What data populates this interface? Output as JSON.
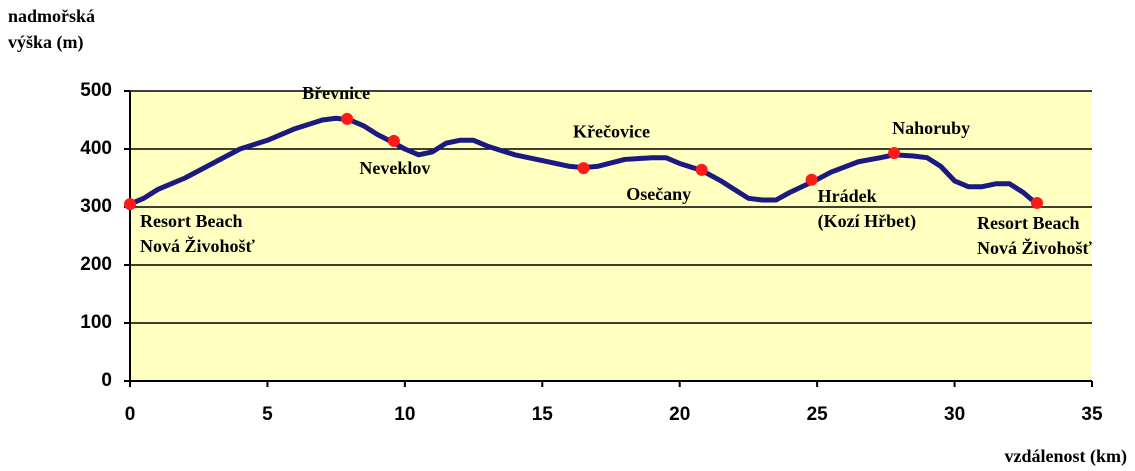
{
  "chart_data": {
    "type": "line",
    "y_label": [
      "nadmořská",
      "výška (m)"
    ],
    "x_label": "vzdálenost (km)",
    "x": [
      0,
      0.5,
      1,
      2,
      3,
      4,
      5,
      6,
      7,
      7.5,
      8,
      8.5,
      9,
      9.5,
      10,
      10.5,
      11,
      11.5,
      12,
      12.5,
      13,
      14,
      15,
      16,
      16.5,
      17,
      18,
      19,
      19.5,
      20,
      20.8,
      21.5,
      22,
      22.5,
      23,
      23.5,
      24,
      24.9,
      25.5,
      26.5,
      27.3,
      27.8,
      28.5,
      29,
      29.5,
      30,
      30.5,
      31,
      31.5,
      32,
      32.5,
      33
    ],
    "values": [
      305,
      315,
      330,
      350,
      375,
      400,
      415,
      435,
      450,
      453,
      450,
      440,
      425,
      413,
      400,
      390,
      395,
      410,
      415,
      415,
      405,
      390,
      380,
      370,
      368,
      370,
      382,
      385,
      385,
      375,
      363,
      345,
      330,
      315,
      312,
      312,
      325,
      345,
      360,
      378,
      385,
      390,
      388,
      385,
      370,
      345,
      335,
      335,
      340,
      340,
      325,
      305
    ],
    "color": "#1a1a80",
    "marker_color": "#ff1a1a",
    "background": "#ffffc0",
    "points": [
      {
        "label": [
          "Resort Beach",
          "Nová Živohošť"
        ],
        "x": 0,
        "y": 305
      },
      {
        "label": [
          "Břevnice"
        ],
        "x": 7.9,
        "y": 452
      },
      {
        "label": [
          "Neveklov"
        ],
        "x": 9.6,
        "y": 414
      },
      {
        "label": [
          "Křečovice"
        ],
        "x": 16.5,
        "y": 367
      },
      {
        "label": [
          "Osečany"
        ],
        "x": 20.8,
        "y": 364
      },
      {
        "label": [
          "Hrádek",
          "(Kozí Hřbet)"
        ],
        "x": 24.8,
        "y": 347
      },
      {
        "label": [
          "Nahoruby"
        ],
        "x": 27.8,
        "y": 393
      },
      {
        "label": [
          "Resort Beach",
          "Nová Živohošť"
        ],
        "x": 33,
        "y": 307
      }
    ],
    "xlim": [
      0,
      35
    ],
    "xticks": [
      0,
      5,
      10,
      15,
      20,
      25,
      30,
      35
    ],
    "ylim": [
      0,
      500
    ],
    "yticks": [
      0,
      100,
      200,
      300,
      400,
      500
    ],
    "grid": true
  }
}
